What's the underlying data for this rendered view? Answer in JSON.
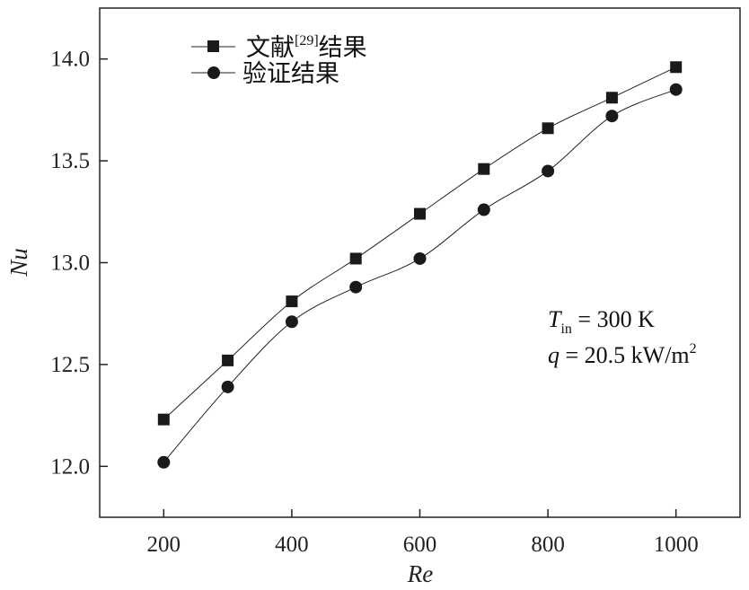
{
  "chart_data": {
    "type": "line",
    "title": "",
    "xlabel": "Re",
    "ylabel": "Nu",
    "xlim": [
      100,
      1100
    ],
    "ylim": [
      11.75,
      14.25
    ],
    "xticks": [
      200,
      400,
      600,
      800,
      1000
    ],
    "yticks": [
      12.0,
      12.5,
      13.0,
      13.5,
      14.0
    ],
    "xtick_labels": [
      "200",
      "400",
      "600",
      "800",
      "1000"
    ],
    "ytick_labels": [
      "12.0",
      "12.5",
      "13.0",
      "13.5",
      "14.0"
    ],
    "grid": false,
    "legend_position": "top-left",
    "x": [
      200,
      300,
      400,
      500,
      600,
      700,
      800,
      900,
      1000
    ],
    "series": [
      {
        "name": "文献[29]结果",
        "name_main": "文献",
        "name_ref": "[29]",
        "name_tail": "结果",
        "marker": "square",
        "values": [
          12.23,
          12.52,
          12.81,
          13.02,
          13.24,
          13.46,
          13.66,
          13.81,
          13.96
        ]
      },
      {
        "name": "验证结果",
        "marker": "circle",
        "values": [
          12.02,
          12.39,
          12.71,
          12.88,
          13.02,
          13.26,
          13.45,
          13.72,
          13.85
        ]
      }
    ],
    "annotations": {
      "tin_symbol": "T",
      "tin_sub": "in",
      "tin_value": " = 300 K",
      "q_symbol": "q",
      "q_value": " = 20.5 kW/m",
      "q_sup": "2"
    },
    "colors": {
      "line": "#222222",
      "marker": "#1a1a1a"
    }
  }
}
